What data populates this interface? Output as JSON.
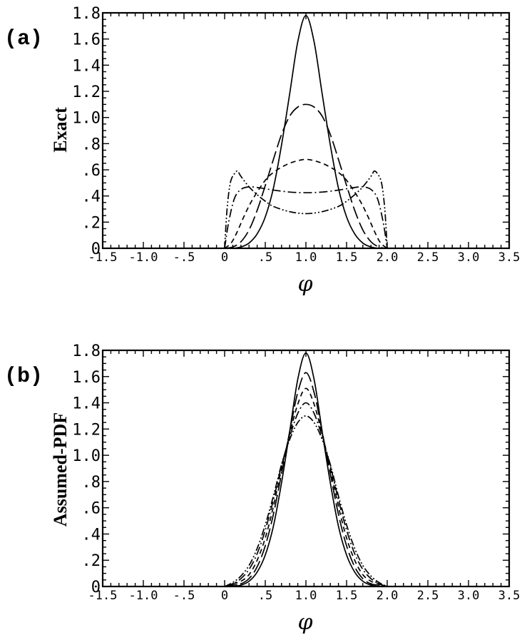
{
  "figure": {
    "panels": [
      {
        "label": "(a)",
        "ylabel": "Exact",
        "xlabel": "φ"
      },
      {
        "label": "(b)",
        "ylabel": "Assumed-PDF",
        "xlabel": "φ"
      }
    ]
  },
  "chart_data": [
    {
      "type": "line",
      "title": "",
      "xlabel": "φ",
      "ylabel": "Exact",
      "xlim": [
        -1.5,
        3.5
      ],
      "ylim": [
        0,
        1.8
      ],
      "x_ticks": [
        "-1.5",
        "-1.0",
        "-.5",
        "0",
        ".5",
        "1.0",
        "1.5",
        "2.0",
        "2.5",
        "3.0",
        "3.5"
      ],
      "x_tick_values": [
        -1.5,
        -1.0,
        -0.5,
        0,
        0.5,
        1.0,
        1.5,
        2.0,
        2.5,
        3.0,
        3.5
      ],
      "y_ticks": [
        "0",
        ".2",
        ".4",
        ".6",
        ".8",
        "1.0",
        "1.2",
        "1.4",
        "1.6",
        "1.8"
      ],
      "y_tick_values": [
        0,
        0.2,
        0.4,
        0.6,
        0.8,
        1.0,
        1.2,
        1.4,
        1.6,
        1.8
      ],
      "grid": false,
      "series": [
        {
          "style": "solid",
          "x": [
            0.0,
            0.1,
            0.2,
            0.3,
            0.4,
            0.5,
            0.6,
            0.7,
            0.8,
            0.9,
            1.0,
            1.1,
            1.2,
            1.3,
            1.4,
            1.5,
            1.6,
            1.7,
            1.8,
            1.9,
            2.0
          ],
          "y": [
            0.0,
            0.0,
            0.01,
            0.04,
            0.11,
            0.24,
            0.46,
            0.79,
            1.18,
            1.58,
            1.78,
            1.58,
            1.18,
            0.79,
            0.46,
            0.24,
            0.11,
            0.04,
            0.01,
            0.0,
            0.0
          ]
        },
        {
          "style": "long-dash",
          "x": [
            0.0,
            0.1,
            0.2,
            0.3,
            0.4,
            0.5,
            0.6,
            0.7,
            0.8,
            0.9,
            1.0,
            1.1,
            1.2,
            1.3,
            1.4,
            1.5,
            1.6,
            1.7,
            1.8,
            1.9,
            2.0
          ],
          "y": [
            0.0,
            0.01,
            0.05,
            0.14,
            0.29,
            0.48,
            0.68,
            0.87,
            1.01,
            1.08,
            1.1,
            1.08,
            1.01,
            0.87,
            0.68,
            0.48,
            0.29,
            0.14,
            0.05,
            0.01,
            0.0
          ]
        },
        {
          "style": "short-dash",
          "x": [
            0.0,
            0.08,
            0.15,
            0.25,
            0.35,
            0.5,
            0.6,
            0.7,
            0.8,
            0.9,
            1.0,
            1.1,
            1.2,
            1.3,
            1.4,
            1.5,
            1.65,
            1.75,
            1.85,
            1.92,
            2.0
          ],
          "y": [
            0.0,
            0.04,
            0.12,
            0.26,
            0.38,
            0.52,
            0.58,
            0.62,
            0.65,
            0.67,
            0.68,
            0.67,
            0.65,
            0.62,
            0.58,
            0.52,
            0.38,
            0.26,
            0.12,
            0.04,
            0.0
          ]
        },
        {
          "style": "dash-dot",
          "x": [
            0.0,
            0.05,
            0.12,
            0.2,
            0.3,
            0.4,
            0.5,
            0.6,
            0.8,
            1.0,
            1.2,
            1.4,
            1.5,
            1.6,
            1.7,
            1.8,
            1.88,
            1.95,
            2.0
          ],
          "y": [
            0.0,
            0.2,
            0.38,
            0.45,
            0.47,
            0.465,
            0.455,
            0.445,
            0.43,
            0.425,
            0.43,
            0.445,
            0.455,
            0.465,
            0.47,
            0.45,
            0.38,
            0.2,
            0.0
          ]
        },
        {
          "style": "dash-dot-dot",
          "x": [
            0.0,
            0.03,
            0.07,
            0.12,
            0.16,
            0.2,
            0.3,
            0.4,
            0.5,
            0.6,
            0.8,
            1.0,
            1.2,
            1.4,
            1.5,
            1.6,
            1.7,
            1.8,
            1.84,
            1.88,
            1.93,
            1.97,
            2.0
          ],
          "y": [
            0.0,
            0.3,
            0.5,
            0.57,
            0.59,
            0.55,
            0.47,
            0.41,
            0.36,
            0.32,
            0.28,
            0.265,
            0.28,
            0.32,
            0.36,
            0.41,
            0.47,
            0.55,
            0.59,
            0.57,
            0.5,
            0.3,
            0.0
          ]
        }
      ]
    },
    {
      "type": "line",
      "title": "",
      "xlabel": "φ",
      "ylabel": "Assumed-PDF",
      "xlim": [
        -1.5,
        3.5
      ],
      "ylim": [
        0,
        1.8
      ],
      "x_ticks": [
        "-1.5",
        "-1.0",
        "-.5",
        "0",
        ".5",
        "1.0",
        "1.5",
        "2.0",
        "2.5",
        "3.0",
        "3.5"
      ],
      "x_tick_values": [
        -1.5,
        -1.0,
        -0.5,
        0,
        0.5,
        1.0,
        1.5,
        2.0,
        2.5,
        3.0,
        3.5
      ],
      "y_ticks": [
        "0",
        ".2",
        ".4",
        ".6",
        ".8",
        "1.0",
        "1.2",
        "1.4",
        "1.6",
        "1.8"
      ],
      "y_tick_values": [
        0,
        0.2,
        0.4,
        0.6,
        0.8,
        1.0,
        1.2,
        1.4,
        1.6,
        1.8
      ],
      "grid": false,
      "series": [
        {
          "style": "solid",
          "x": [
            0.0,
            0.1,
            0.2,
            0.3,
            0.4,
            0.5,
            0.6,
            0.7,
            0.8,
            0.9,
            1.0,
            1.1,
            1.2,
            1.3,
            1.4,
            1.5,
            1.6,
            1.7,
            1.8,
            1.9,
            2.0
          ],
          "y": [
            0.0,
            0.0,
            0.01,
            0.04,
            0.11,
            0.24,
            0.46,
            0.79,
            1.18,
            1.58,
            1.78,
            1.58,
            1.18,
            0.79,
            0.46,
            0.24,
            0.11,
            0.04,
            0.01,
            0.0,
            0.0
          ]
        },
        {
          "style": "long-dash",
          "x": [
            0.0,
            0.1,
            0.2,
            0.3,
            0.4,
            0.5,
            0.6,
            0.7,
            0.8,
            0.9,
            1.0,
            1.1,
            1.2,
            1.3,
            1.4,
            1.5,
            1.6,
            1.7,
            1.8,
            1.9,
            2.0
          ],
          "y": [
            0.0,
            0.01,
            0.02,
            0.06,
            0.15,
            0.31,
            0.55,
            0.86,
            1.18,
            1.48,
            1.63,
            1.48,
            1.18,
            0.86,
            0.55,
            0.31,
            0.15,
            0.06,
            0.02,
            0.01,
            0.0
          ]
        },
        {
          "style": "short-dash",
          "x": [
            0.0,
            0.1,
            0.2,
            0.3,
            0.4,
            0.5,
            0.6,
            0.7,
            0.8,
            0.9,
            1.0,
            1.1,
            1.2,
            1.3,
            1.4,
            1.5,
            1.6,
            1.7,
            1.8,
            1.9,
            2.0
          ],
          "y": [
            0.0,
            0.02,
            0.04,
            0.09,
            0.2,
            0.37,
            0.61,
            0.9,
            1.16,
            1.39,
            1.51,
            1.39,
            1.16,
            0.9,
            0.61,
            0.37,
            0.2,
            0.09,
            0.04,
            0.02,
            0.0
          ]
        },
        {
          "style": "dash-dot",
          "x": [
            0.0,
            0.1,
            0.2,
            0.3,
            0.4,
            0.5,
            0.6,
            0.7,
            0.8,
            0.9,
            1.0,
            1.1,
            1.2,
            1.3,
            1.4,
            1.5,
            1.6,
            1.7,
            1.8,
            1.9,
            2.0
          ],
          "y": [
            0.0,
            0.02,
            0.06,
            0.13,
            0.25,
            0.43,
            0.66,
            0.92,
            1.14,
            1.32,
            1.4,
            1.32,
            1.14,
            0.92,
            0.66,
            0.43,
            0.25,
            0.13,
            0.06,
            0.02,
            0.0
          ]
        },
        {
          "style": "dash-dot-dot",
          "x": [
            0.0,
            0.1,
            0.2,
            0.3,
            0.4,
            0.5,
            0.6,
            0.7,
            0.8,
            0.9,
            1.0,
            1.1,
            1.2,
            1.3,
            1.4,
            1.5,
            1.6,
            1.7,
            1.8,
            1.9,
            2.0
          ],
          "y": [
            0.0,
            0.03,
            0.08,
            0.16,
            0.29,
            0.47,
            0.69,
            0.93,
            1.12,
            1.25,
            1.3,
            1.25,
            1.12,
            0.93,
            0.69,
            0.47,
            0.29,
            0.16,
            0.08,
            0.03,
            0.0
          ]
        }
      ]
    }
  ]
}
